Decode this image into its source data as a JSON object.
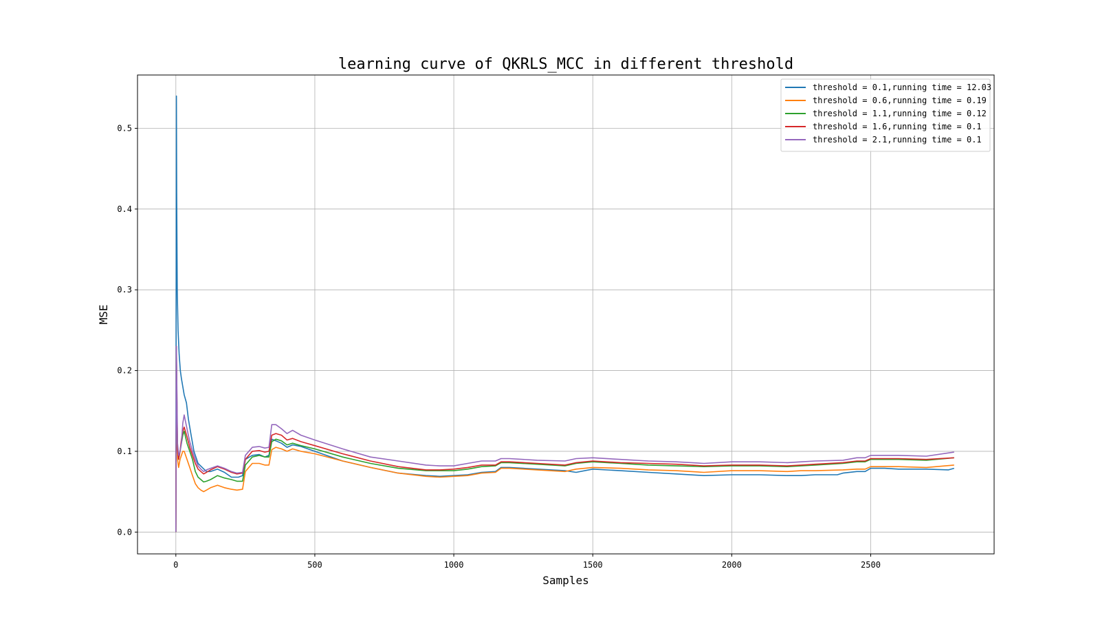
{
  "chart_data": {
    "type": "line",
    "title": "learning curve of QKRLS_MCC in different threshold",
    "xlabel": "Samples",
    "ylabel": "MSE",
    "xlim": [
      -138,
      2944
    ],
    "ylim": [
      -0.027,
      0.566
    ],
    "xticks": [
      0,
      500,
      1000,
      1500,
      2000,
      2500
    ],
    "yticks": [
      0.0,
      0.1,
      0.2,
      0.3,
      0.4,
      0.5
    ],
    "xtick_labels": [
      "0",
      "500",
      "1000",
      "1500",
      "2000",
      "2500"
    ],
    "ytick_labels": [
      "0.0",
      "0.1",
      "0.2",
      "0.3",
      "0.4",
      "0.5"
    ],
    "grid": true,
    "legend_position": "top-right",
    "series": [
      {
        "name": "threshold = 0.1,running time = 12.03",
        "color": "#1f77b4",
        "x": [
          0,
          2,
          3,
          5,
          8,
          12,
          16,
          20,
          25,
          30,
          38,
          45,
          55,
          65,
          80,
          95,
          110,
          125,
          150,
          175,
          200,
          225,
          240,
          250,
          275,
          300,
          320,
          335,
          345,
          360,
          380,
          400,
          420,
          450,
          500,
          550,
          600,
          700,
          800,
          900,
          950,
          1000,
          1050,
          1100,
          1150,
          1170,
          1200,
          1250,
          1300,
          1400,
          1440,
          1500,
          1600,
          1700,
          1800,
          1900,
          2000,
          2100,
          2200,
          2250,
          2300,
          2380,
          2400,
          2450,
          2480,
          2500,
          2550,
          2600,
          2700,
          2780,
          2800
        ],
        "y": [
          0.0,
          0.54,
          0.42,
          0.3,
          0.25,
          0.22,
          0.2,
          0.19,
          0.18,
          0.17,
          0.16,
          0.14,
          0.12,
          0.1,
          0.085,
          0.08,
          0.075,
          0.075,
          0.078,
          0.074,
          0.068,
          0.068,
          0.07,
          0.09,
          0.095,
          0.096,
          0.093,
          0.095,
          0.115,
          0.113,
          0.11,
          0.105,
          0.108,
          0.106,
          0.1,
          0.094,
          0.088,
          0.08,
          0.073,
          0.07,
          0.069,
          0.07,
          0.071,
          0.074,
          0.075,
          0.08,
          0.08,
          0.079,
          0.078,
          0.076,
          0.074,
          0.078,
          0.076,
          0.074,
          0.072,
          0.07,
          0.071,
          0.071,
          0.07,
          0.07,
          0.071,
          0.071,
          0.073,
          0.075,
          0.075,
          0.079,
          0.079,
          0.078,
          0.078,
          0.077,
          0.079
        ]
      },
      {
        "name": "threshold = 0.6,running time = 0.19",
        "color": "#ff7f0e",
        "x": [
          0,
          2,
          4,
          6,
          10,
          15,
          20,
          25,
          30,
          40,
          50,
          60,
          70,
          80,
          90,
          100,
          110,
          125,
          150,
          175,
          200,
          220,
          240,
          250,
          275,
          300,
          320,
          335,
          345,
          360,
          380,
          400,
          420,
          450,
          500,
          600,
          700,
          800,
          900,
          950,
          1000,
          1050,
          1100,
          1150,
          1170,
          1200,
          1300,
          1400,
          1440,
          1500,
          1600,
          1700,
          1800,
          1900,
          2000,
          2100,
          2200,
          2250,
          2300,
          2400,
          2450,
          2480,
          2500,
          2600,
          2700,
          2800
        ],
        "y": [
          0.0,
          0.2,
          0.14,
          0.09,
          0.08,
          0.09,
          0.095,
          0.1,
          0.1,
          0.09,
          0.08,
          0.07,
          0.06,
          0.055,
          0.052,
          0.05,
          0.052,
          0.055,
          0.058,
          0.055,
          0.053,
          0.052,
          0.053,
          0.075,
          0.085,
          0.085,
          0.083,
          0.083,
          0.102,
          0.105,
          0.103,
          0.1,
          0.103,
          0.1,
          0.097,
          0.088,
          0.08,
          0.073,
          0.069,
          0.068,
          0.069,
          0.07,
          0.073,
          0.074,
          0.079,
          0.079,
          0.077,
          0.075,
          0.078,
          0.08,
          0.079,
          0.077,
          0.076,
          0.074,
          0.076,
          0.076,
          0.075,
          0.076,
          0.076,
          0.077,
          0.078,
          0.078,
          0.081,
          0.081,
          0.08,
          0.083
        ]
      },
      {
        "name": "threshold = 1.1,running time = 0.12",
        "color": "#2ca02c",
        "x": [
          0,
          2,
          4,
          6,
          10,
          15,
          20,
          25,
          30,
          40,
          50,
          60,
          70,
          80,
          90,
          100,
          110,
          125,
          150,
          175,
          200,
          220,
          240,
          250,
          275,
          300,
          320,
          335,
          345,
          360,
          380,
          400,
          420,
          450,
          500,
          600,
          700,
          800,
          900,
          950,
          1000,
          1050,
          1100,
          1150,
          1170,
          1200,
          1300,
          1400,
          1440,
          1500,
          1600,
          1700,
          1800,
          1900,
          2000,
          2100,
          2200,
          2250,
          2300,
          2400,
          2450,
          2480,
          2500,
          2600,
          2700,
          2800
        ],
        "y": [
          0.0,
          0.22,
          0.15,
          0.1,
          0.09,
          0.1,
          0.11,
          0.12,
          0.125,
          0.11,
          0.1,
          0.09,
          0.075,
          0.068,
          0.065,
          0.062,
          0.063,
          0.065,
          0.07,
          0.067,
          0.065,
          0.063,
          0.063,
          0.083,
          0.093,
          0.095,
          0.093,
          0.093,
          0.112,
          0.115,
          0.113,
          0.108,
          0.11,
          0.107,
          0.103,
          0.093,
          0.085,
          0.079,
          0.076,
          0.076,
          0.076,
          0.078,
          0.081,
          0.082,
          0.086,
          0.086,
          0.084,
          0.082,
          0.085,
          0.087,
          0.085,
          0.083,
          0.082,
          0.081,
          0.082,
          0.082,
          0.081,
          0.082,
          0.083,
          0.085,
          0.087,
          0.087,
          0.09,
          0.09,
          0.089,
          0.092
        ]
      },
      {
        "name": "threshold = 1.6,running time = 0.1",
        "color": "#d62728",
        "x": [
          0,
          2,
          4,
          6,
          10,
          15,
          20,
          25,
          30,
          40,
          50,
          60,
          70,
          80,
          90,
          100,
          110,
          125,
          150,
          175,
          200,
          220,
          240,
          250,
          275,
          300,
          320,
          335,
          345,
          360,
          380,
          400,
          420,
          450,
          500,
          600,
          700,
          800,
          900,
          950,
          1000,
          1050,
          1100,
          1150,
          1170,
          1200,
          1300,
          1400,
          1440,
          1500,
          1600,
          1700,
          1800,
          1900,
          2000,
          2100,
          2200,
          2250,
          2300,
          2400,
          2450,
          2480,
          2500,
          2600,
          2700,
          2800
        ],
        "y": [
          0.0,
          0.23,
          0.16,
          0.1,
          0.09,
          0.1,
          0.115,
          0.125,
          0.13,
          0.118,
          0.105,
          0.095,
          0.085,
          0.078,
          0.075,
          0.072,
          0.074,
          0.077,
          0.081,
          0.078,
          0.074,
          0.072,
          0.073,
          0.09,
          0.1,
          0.101,
          0.099,
          0.1,
          0.12,
          0.122,
          0.12,
          0.114,
          0.116,
          0.112,
          0.107,
          0.097,
          0.088,
          0.081,
          0.077,
          0.077,
          0.078,
          0.08,
          0.083,
          0.083,
          0.087,
          0.087,
          0.085,
          0.083,
          0.086,
          0.088,
          0.086,
          0.085,
          0.084,
          0.082,
          0.083,
          0.083,
          0.082,
          0.083,
          0.084,
          0.086,
          0.088,
          0.088,
          0.091,
          0.091,
          0.09,
          0.092
        ]
      },
      {
        "name": "threshold = 2.1,running time = 0.1",
        "color": "#9467bd",
        "x": [
          0,
          2,
          4,
          6,
          10,
          15,
          20,
          25,
          30,
          40,
          50,
          60,
          70,
          80,
          90,
          100,
          110,
          125,
          150,
          175,
          200,
          220,
          240,
          250,
          275,
          300,
          320,
          335,
          345,
          360,
          380,
          400,
          420,
          450,
          500,
          600,
          700,
          800,
          900,
          950,
          1000,
          1050,
          1100,
          1150,
          1170,
          1200,
          1300,
          1400,
          1440,
          1500,
          1600,
          1700,
          1800,
          1900,
          2000,
          2100,
          2200,
          2250,
          2300,
          2400,
          2450,
          2480,
          2500,
          2600,
          2700,
          2800
        ],
        "y": [
          0.0,
          0.23,
          0.17,
          0.11,
          0.095,
          0.1,
          0.11,
          0.135,
          0.145,
          0.128,
          0.112,
          0.1,
          0.09,
          0.082,
          0.078,
          0.075,
          0.077,
          0.079,
          0.082,
          0.079,
          0.075,
          0.073,
          0.074,
          0.095,
          0.105,
          0.106,
          0.104,
          0.105,
          0.133,
          0.133,
          0.128,
          0.122,
          0.126,
          0.12,
          0.114,
          0.103,
          0.093,
          0.088,
          0.083,
          0.082,
          0.082,
          0.085,
          0.088,
          0.088,
          0.091,
          0.091,
          0.089,
          0.088,
          0.091,
          0.092,
          0.09,
          0.088,
          0.087,
          0.085,
          0.087,
          0.087,
          0.086,
          0.087,
          0.088,
          0.089,
          0.092,
          0.092,
          0.095,
          0.095,
          0.094,
          0.099
        ]
      }
    ]
  }
}
